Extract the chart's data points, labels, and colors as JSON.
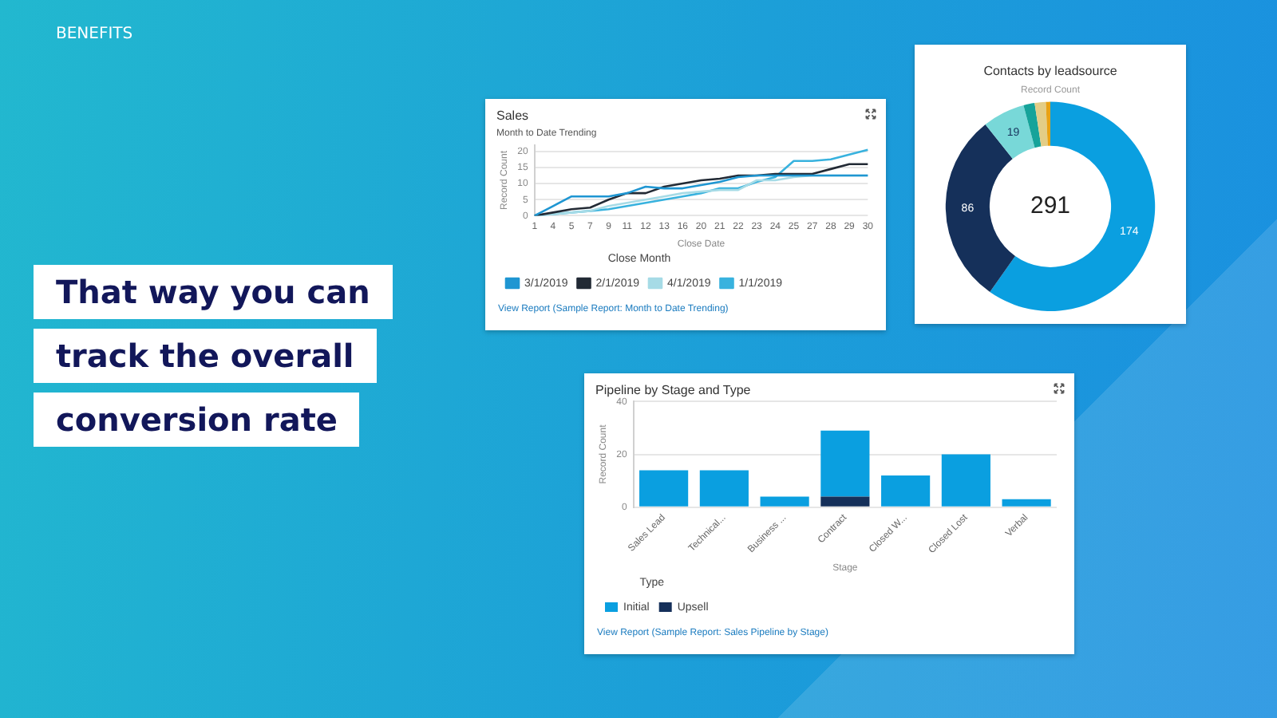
{
  "chart_data": [
    {
      "type": "other",
      "title": "BENEFITS",
      "annotations": [
        "That way you can",
        "track the overall",
        "conversion rate"
      ]
    },
    {
      "type": "line",
      "title": "Sales",
      "subtitle": "Month to Date Trending",
      "xlabel": "Close Date",
      "ylabel": "Record Count",
      "legend_title": "Close Month",
      "legend": "bottom",
      "grid": "y",
      "categories": [
        "1",
        "4",
        "5",
        "7",
        "9",
        "11",
        "12",
        "13",
        "16",
        "20",
        "21",
        "22",
        "23",
        "24",
        "25",
        "27",
        "28",
        "29",
        "30"
      ],
      "ylim": [
        0,
        22
      ],
      "yticks": [
        0,
        5,
        10,
        15,
        20
      ],
      "annotations": [
        "View Report (Sample Report: Month to Date Trending)"
      ],
      "series": [
        {
          "name": "3/1/2019",
          "color": "#1f96d2",
          "values": [
            0,
            3,
            6,
            6,
            6,
            7,
            9,
            8.5,
            8.5,
            9.5,
            10.5,
            12,
            12.5,
            12.5,
            12.5,
            12.5,
            12.5,
            12.5,
            12.5
          ]
        },
        {
          "name": "2/1/2019",
          "color": "#222a35",
          "values": [
            0,
            1,
            2,
            2.5,
            5,
            7,
            7,
            9,
            10,
            11,
            11.5,
            12.5,
            12.5,
            13,
            13,
            13,
            14.5,
            16,
            16
          ]
        },
        {
          "name": "4/1/2019",
          "color": "#a6dbe6",
          "values": [
            0,
            0.5,
            1,
            1.5,
            3,
            4,
            5,
            6,
            7,
            7.5,
            8,
            8,
            11,
            11,
            12,
            12.5,
            12.5,
            12.5,
            12.5
          ]
        },
        {
          "name": "1/1/2019",
          "color": "#38b2de",
          "values": [
            0,
            0.5,
            1,
            1.5,
            2,
            3,
            4,
            5,
            6,
            7,
            8.5,
            8.5,
            10.5,
            12,
            17,
            17,
            17.5,
            19,
            20.5
          ]
        }
      ]
    },
    {
      "type": "donut",
      "title": "Contacts by leadsource",
      "subtitle": "Record Count",
      "categories": [
        null,
        null,
        null,
        null,
        null,
        null
      ],
      "values": [
        174,
        86,
        19,
        5,
        5,
        2
      ],
      "colors": [
        "#0a9fe0",
        "#15305a",
        "#78d8d8",
        "#15a39a",
        "#e3cd86",
        "#e8a215"
      ],
      "value_labels": [
        "174",
        "86",
        "19",
        null,
        null,
        null
      ],
      "annotations": [
        "291"
      ]
    },
    {
      "type": "bar",
      "stacked": true,
      "title": "Pipeline by Stage and Type",
      "xlabel": "Stage",
      "ylabel": "Record Count",
      "legend_title": "Type",
      "legend": "bottom",
      "grid": "y",
      "categories": [
        "Sales Lead",
        "Technical...",
        "Business ...",
        "Contract",
        "Closed W...",
        "Closed Lost",
        "Verbal"
      ],
      "ylim": [
        0,
        40
      ],
      "yticks": [
        0,
        20,
        40
      ],
      "annotations": [
        "View Report (Sample Report: Sales Pipeline by Stage)"
      ],
      "series": [
        {
          "name": "Upsell",
          "color": "#15305a",
          "values": [
            null,
            null,
            null,
            4,
            null,
            null,
            null
          ]
        },
        {
          "name": "Initial",
          "color": "#0a9fe0",
          "values": [
            14,
            14,
            4,
            25,
            12,
            20,
            3
          ]
        }
      ]
    }
  ]
}
